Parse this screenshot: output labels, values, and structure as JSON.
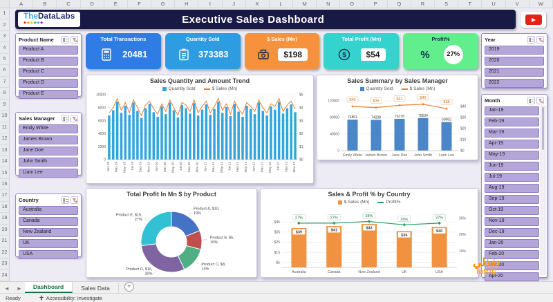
{
  "window": {
    "status_ready": "Ready",
    "accessibility": "Accessibility: Investigate",
    "tabs": [
      "Dashboard",
      "Sales Data"
    ]
  },
  "spreadsheet": {
    "columns": [
      "A",
      "B",
      "C",
      "D",
      "E",
      "F",
      "G",
      "H",
      "I",
      "J",
      "K",
      "L",
      "M",
      "N",
      "O",
      "P",
      "Q",
      "R",
      "S",
      "T",
      "U",
      "V",
      "W"
    ],
    "rows": [
      "1",
      "2",
      "3",
      "4",
      "5",
      "6",
      "7",
      "8",
      "9",
      "10",
      "11",
      "12",
      "13",
      "14",
      "15",
      "16",
      "17",
      "18",
      "19",
      "20",
      "21",
      "22",
      "23",
      "24"
    ]
  },
  "header": {
    "logo_the": "The",
    "logo_data": "Data",
    "logo_labs": "Labs",
    "logo_diamonds": "◆◆◆◆◆◆",
    "title": "Executive Sales Dashboard"
  },
  "watermark": {
    "arabic": "نفذلي",
    "latin": "nafezly"
  },
  "slicers": {
    "product": {
      "title": "Product Name",
      "items": [
        "Product A",
        "Product B",
        "Product C",
        "Product D",
        "Product E"
      ]
    },
    "manager": {
      "title": "Sales Manager",
      "items": [
        "Emily White",
        "James Brown",
        "Jane Doe",
        "John Smith",
        "Liam Lee"
      ]
    },
    "country": {
      "title": "Country",
      "items": [
        "Australia",
        "Canada",
        "New Zealand",
        "UK",
        "USA"
      ]
    },
    "year": {
      "title": "Year",
      "items": [
        "2019",
        "2020",
        "2021",
        "2022"
      ]
    },
    "month": {
      "title": "Month",
      "items": [
        "Jan-19",
        "Feb-19",
        "Mar-19",
        "Apr-19",
        "May-19",
        "Jun-19",
        "Jul-19",
        "Aug-19",
        "Sep-19",
        "Oct-19",
        "Nov-19",
        "Dec-19",
        "Jan-20",
        "Feb-20",
        "Mar-20",
        "Apr-20"
      ]
    }
  },
  "kpis": [
    {
      "label": "Total Transactions",
      "value": "20481",
      "color": "#2e7ce4"
    },
    {
      "label": "Quantity Sold",
      "value": "373383",
      "color": "#2d9ce0"
    },
    {
      "label": "$ Sales (Mn)",
      "value": "$198",
      "color": "#f6913e"
    },
    {
      "label": "Total Profit (Mn)",
      "value": "$54",
      "color": "#35d3cd"
    },
    {
      "label": "Profit%",
      "value": "27%",
      "color": "#63ee8d"
    }
  ],
  "chart_data": [
    {
      "type": "combo-bar-line",
      "title": "Sales Quantity and Amount Trend",
      "legend": [
        "Quantity Sold",
        "$ Sales (Mn)"
      ],
      "bar_color": "#31a5dc",
      "line_color": "#ed7d31",
      "x": [
        "Jan-19",
        "Feb-19",
        "Mar-19",
        "Apr-19",
        "May-19",
        "Jun-19",
        "Jul-19",
        "Aug-19",
        "Sep-19",
        "Oct-19",
        "Nov-19",
        "Dec-19",
        "Jan-20",
        "Feb-20",
        "Mar-20",
        "Apr-20",
        "May-20",
        "Jun-20",
        "Jul-20",
        "Aug-20",
        "Sep-20",
        "Oct-20",
        "Nov-20",
        "Dec-20",
        "Jan-21",
        "Feb-21",
        "Mar-21",
        "Apr-21",
        "May-21",
        "Jun-21",
        "Jul-21",
        "Aug-21",
        "Sep-21",
        "Oct-21",
        "Nov-21",
        "Dec-21",
        "Jan-22",
        "Feb-22",
        "Mar-22",
        "Apr-22",
        "May-22",
        "Jun-22",
        "Jul-22",
        "Aug-22",
        "Sep-22",
        "Oct-22",
        "Nov-22"
      ],
      "bars": [
        6800,
        7600,
        8900,
        7200,
        8300,
        6900,
        8800,
        7500,
        6400,
        7900,
        8600,
        7300,
        6600,
        8200,
        7000,
        8800,
        7600,
        6500,
        8400,
        7900,
        7100,
        8700,
        6800,
        7700,
        8500,
        6900,
        7800,
        8900,
        7200,
        8100,
        6700,
        8600,
        7400,
        6600,
        8300,
        7800,
        7000,
        8800,
        7500,
        6800,
        8200,
        7700,
        8900,
        7100,
        7900,
        8500,
        7300
      ],
      "line": [
        3.6,
        4.0,
        4.7,
        3.8,
        4.4,
        3.6,
        4.6,
        4.0,
        3.4,
        4.2,
        4.5,
        3.9,
        3.5,
        4.3,
        3.7,
        4.6,
        4.0,
        3.4,
        4.4,
        4.2,
        3.7,
        4.6,
        3.6,
        4.1,
        4.5,
        3.6,
        4.1,
        4.7,
        3.8,
        4.3,
        3.5,
        4.5,
        3.9,
        3.5,
        4.4,
        4.1,
        3.7,
        4.6,
        4.0,
        3.6,
        4.3,
        4.1,
        4.7,
        3.7,
        4.2,
        4.5,
        3.9
      ],
      "y_left": {
        "max": 10000,
        "ticks": [
          0,
          2000,
          4000,
          6000,
          8000,
          10000
        ]
      },
      "y_right": {
        "max": 5,
        "ticks": [
          0,
          1,
          2,
          3,
          4,
          5
        ],
        "labels": [
          "$0",
          "$1",
          "$2",
          "$3",
          "$4",
          "$5"
        ]
      }
    },
    {
      "type": "combo-bar-line",
      "title": "Sales Summary by Sales Manager",
      "legend": [
        "Quantity Sold",
        "$ Sales (Mn)"
      ],
      "bar_color": "#4a86c8",
      "line_color": "#ed7d31",
      "categories": [
        "Emily White",
        "James Brown",
        "Jane Doe",
        "John Smith",
        "Liam Lee"
      ],
      "bars": [
        74801,
        74208,
        76778,
        78534,
        69062
      ],
      "bar_labels": [
        "74801",
        "74208",
        "76778",
        "78534",
        "69062"
      ],
      "line": [
        40,
        39,
        41,
        42,
        38
      ],
      "line_labels": [
        "$40",
        "$39",
        "$41",
        "$42",
        "$38"
      ],
      "y_left": {
        "max": 120000,
        "ticks": [
          0,
          40000,
          80000,
          120000
        ],
        "labels": [
          "0",
          "40000",
          "80000",
          "120000"
        ]
      },
      "y_right": {
        "max": 45,
        "ticks": [
          0,
          10,
          20,
          30,
          40
        ],
        "labels": [
          "$0",
          "$10",
          "$20",
          "$30",
          "$40"
        ]
      }
    },
    {
      "type": "donut",
      "title": "Total Profit In Mn $ by Product",
      "slices": [
        {
          "name": "Product A",
          "lines": [
            "Product A, $10,",
            "19%"
          ],
          "value": 19,
          "color": "#4472c4"
        },
        {
          "name": "Product B",
          "lines": [
            "Product B, $5,",
            "10%"
          ],
          "value": 10,
          "color": "#c0504d"
        },
        {
          "name": "Product C",
          "lines": [
            "Product C, $8,",
            "14%"
          ],
          "value": 14,
          "color": "#4fae84"
        },
        {
          "name": "Product D",
          "lines": [
            "Product D, $16,",
            "30%"
          ],
          "value": 30,
          "color": "#8064a2"
        },
        {
          "name": "Product E",
          "lines": [
            "Product E, $15,",
            "27%"
          ],
          "value": 27,
          "color": "#31c0d4"
        }
      ]
    },
    {
      "type": "combo-bar-line",
      "title": "Sales & Profit % by Country",
      "legend": [
        "$ Sales (Mn)",
        "Profit%"
      ],
      "bar_color": "#f0923f",
      "line_color": "#2f9e63",
      "categories": [
        "Australia",
        "Canada",
        "New Zealand",
        "UK",
        "USA"
      ],
      "bars": [
        39,
        41,
        43,
        36,
        40
      ],
      "bar_labels": [
        "$39",
        "$41",
        "$43",
        "$36",
        "$40"
      ],
      "line": [
        27,
        27,
        28,
        26,
        27
      ],
      "line_labels": [
        "27%",
        "27%",
        "28%",
        "26%",
        "27%"
      ],
      "y_left": {
        "max": 52,
        "ticks": [
          5,
          15,
          25,
          35,
          45
        ],
        "labels": [
          "$5",
          "$15",
          "$25",
          "$35",
          "$45"
        ]
      },
      "y_right": {
        "max": 32,
        "ticks": [
          10,
          20,
          30
        ],
        "labels": [
          "10%",
          "20%",
          "30%"
        ]
      }
    }
  ]
}
